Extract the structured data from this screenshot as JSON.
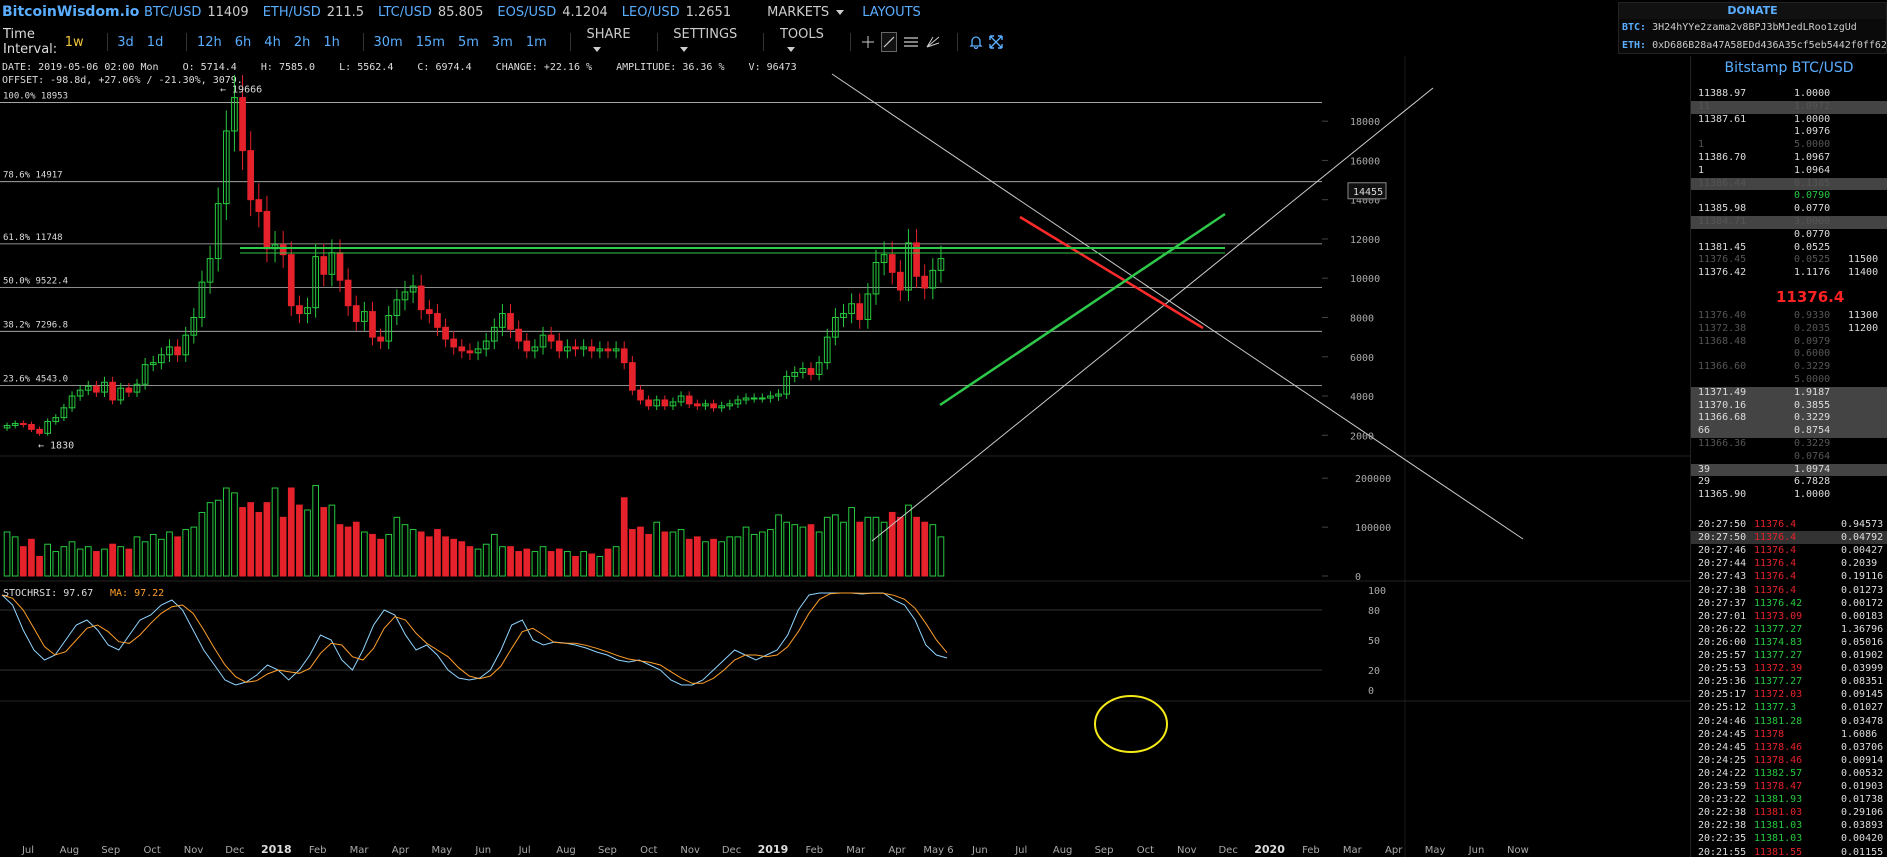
{
  "header": {
    "logo": "BitcoinWisdom.io",
    "tickers": [
      {
        "symbol": "BTC/USD",
        "value": "11409"
      },
      {
        "symbol": "ETH/USD",
        "value": "211.5"
      },
      {
        "symbol": "LTC/USD",
        "value": "85.805"
      },
      {
        "symbol": "EOS/USD",
        "value": "4.1204"
      },
      {
        "symbol": "LEO/USD",
        "value": "1.2651"
      }
    ],
    "markets_label": "MARKETS",
    "layouts_label": "LAYOUTS"
  },
  "toolbar": {
    "interval_label": "Time Interval:",
    "intervals": [
      "1w",
      "3d",
      "1d",
      "12h",
      "6h",
      "4h",
      "2h",
      "1h",
      "30m",
      "15m",
      "5m",
      "3m",
      "1m"
    ],
    "active_interval": "1w",
    "share_label": "SHARE",
    "settings_label": "SETTINGS",
    "tools_label": "TOOLS",
    "tool_icons": [
      "crosshair-icon",
      "trendline-icon",
      "horizontal-lines-icon",
      "draw-icon",
      "alert-bell-icon",
      "fullscreen-icon"
    ]
  },
  "donate": {
    "title": "DONATE",
    "btc_label": "BTC:",
    "btc_address": "3H24hYYe2zama2v8BPJ3bMJedLRoo1zgUd",
    "eth_label": "ETH:",
    "eth_address": "0xD686B28a47A58EDd436A35cf5eb5442f0ff62"
  },
  "chart_info": {
    "line1": "DATE: 2019-05-06 02:00 Mon    O: 5714.4    H: 7585.0    L: 5562.4    C: 6974.4    CHANGE: +22.16 %    AMPLITUDE: 36.36 %    V: 96473",
    "line2": "OFFSET: -98.8d, +27.06% / -21.30%, 3079."
  },
  "chart_data": {
    "type": "candlestick",
    "price_axis_ticks": [
      "18000",
      "16000",
      "14000",
      "12000",
      "10000",
      "8000",
      "6000",
      "4000",
      "2000"
    ],
    "price_axis_ticks_values": [
      18000,
      16000,
      14000,
      12000,
      10000,
      8000,
      6000,
      4000,
      2000
    ],
    "price_range": [
      1200,
      20300
    ],
    "volume_axis_ticks": [
      "200000",
      "100000",
      "0"
    ],
    "volume_axis_ticks_values": [
      200000,
      100000,
      0
    ],
    "volume_range": [
      0,
      225000
    ],
    "stoch_axis_ticks": [
      "100",
      "80",
      "50",
      "20",
      "0"
    ],
    "stoch_axis_ticks_values": [
      100,
      80,
      50,
      20,
      0
    ],
    "x_labels": [
      "Jul",
      "Aug",
      "Sep",
      "Oct",
      "Nov",
      "Dec",
      "2018",
      "Feb",
      "Mar",
      "Apr",
      "May",
      "Jun",
      "Jul",
      "Aug",
      "Sep",
      "Oct",
      "Nov",
      "Dec",
      "2019",
      "Feb",
      "Mar",
      "Apr",
      "May 6",
      "Jun",
      "Jul",
      "Aug",
      "Sep",
      "Oct",
      "Nov",
      "Dec",
      "2020",
      "Feb",
      "Mar",
      "Apr",
      "May",
      "Jun",
      "Now"
    ],
    "fib_levels": [
      {
        "label": "100.0% 18953",
        "value": 18953
      },
      {
        "label": "78.6% 14917",
        "value": 14917
      },
      {
        "label": "61.8% 11748",
        "value": 11748
      },
      {
        "label": "50.0% 9522.4",
        "value": 9522.4
      },
      {
        "label": "38.2% 7296.8",
        "value": 7296.8
      },
      {
        "label": "23.6% 4543.0",
        "value": 4543.0
      }
    ],
    "high_label": "← 19666",
    "high_value": 19666,
    "low_label": "← 1830",
    "low_value": 1830,
    "current_price_tag": "14455",
    "current_price_value": 14455,
    "stoch_label": "STOCHRSI: 97.67",
    "ma_label": "MA: 97.22",
    "closes": [
      2500,
      2600,
      2550,
      2300,
      2100,
      2700,
      2900,
      3400,
      4000,
      4300,
      4500,
      4200,
      4700,
      3800,
      4400,
      4200,
      4600,
      5600,
      5700,
      6100,
      6500,
      6100,
      7100,
      8000,
      9800,
      11000,
      13800,
      17500,
      19200,
      16500,
      14000,
      13400,
      11500,
      11700,
      11200,
      8600,
      8200,
      8500,
      11100,
      10200,
      11300,
      9900,
      8600,
      7800,
      8300,
      7000,
      6800,
      8100,
      8900,
      9300,
      9600,
      8400,
      8200,
      7500,
      6900,
      6500,
      6300,
      6200,
      6400,
      6800,
      7500,
      8200,
      7400,
      6800,
      6300,
      6500,
      7100,
      6800,
      6300,
      6500,
      6400,
      6500,
      6300,
      6400,
      6300,
      6400,
      5700,
      4300,
      3800,
      3500,
      3800,
      3500,
      3700,
      4000,
      3600,
      3500,
      3600,
      3400,
      3500,
      3600,
      3800,
      3900,
      3900,
      3900,
      4000,
      4100,
      5000,
      5200,
      5400,
      5100,
      5700,
      7000,
      8000,
      8200,
      8700,
      7900,
      9200,
      10800,
      11200,
      10300,
      9400,
      11800,
      10100,
      9500,
      10400,
      11000
    ],
    "volumes": [
      90000,
      80000,
      60000,
      75000,
      40000,
      65000,
      50000,
      60000,
      70000,
      55000,
      60000,
      50000,
      55000,
      65000,
      60000,
      55000,
      80000,
      70000,
      85000,
      75000,
      90000,
      80000,
      95000,
      100000,
      130000,
      150000,
      155000,
      180000,
      170000,
      140000,
      150000,
      130000,
      150000,
      180000,
      120000,
      180000,
      145000,
      135000,
      185000,
      140000,
      145000,
      105000,
      100000,
      110000,
      90000,
      85000,
      75000,
      85000,
      120000,
      105000,
      95000,
      90000,
      80000,
      95000,
      80000,
      75000,
      70000,
      60000,
      55000,
      65000,
      85000,
      60000,
      60000,
      50000,
      55000,
      50000,
      60000,
      50000,
      55000,
      50000,
      40000,
      50000,
      45000,
      40000,
      55000,
      60000,
      160000,
      95000,
      100000,
      85000,
      110000,
      90000,
      90000,
      95000,
      75000,
      80000,
      70000,
      75000,
      70000,
      80000,
      80000,
      100000,
      85000,
      90000,
      95000,
      125000,
      110000,
      105000,
      100000,
      105000,
      90000,
      120000,
      125000,
      110000,
      140000,
      110000,
      120000,
      120000,
      110000,
      130000,
      120000,
      145000,
      120000,
      110000,
      105000,
      80000
    ],
    "stoch_k": [
      95,
      85,
      60,
      40,
      30,
      35,
      50,
      65,
      70,
      60,
      45,
      40,
      55,
      70,
      75,
      85,
      90,
      80,
      60,
      40,
      25,
      10,
      5,
      8,
      15,
      25,
      20,
      10,
      20,
      35,
      55,
      50,
      30,
      20,
      40,
      65,
      80,
      75,
      55,
      40,
      45,
      35,
      20,
      12,
      10,
      12,
      20,
      40,
      65,
      70,
      50,
      45,
      48,
      47,
      45,
      42,
      38,
      35,
      30,
      28,
      30,
      25,
      20,
      10,
      5,
      5,
      10,
      20,
      30,
      40,
      35,
      30,
      35,
      40,
      55,
      80,
      95,
      97,
      97,
      97,
      97,
      96,
      97,
      97,
      90,
      85,
      70,
      45,
      35,
      32
    ]
  },
  "orderbook": {
    "title": "Bitstamp BTC/USD",
    "asks": [
      {
        "price": "11388.97",
        "amount": "1.0000"
      },
      {
        "price": "11",
        "amount": "1.0972"
      },
      {
        "price": "11387.61",
        "amount": "1.0000"
      },
      {
        "price": "",
        "amount": "1.0976"
      },
      {
        "price": "1",
        "amount": "5.0000"
      },
      {
        "price": "11386.70",
        "amount": "1.0967"
      },
      {
        "price": "1",
        "amount": "1.0964"
      },
      {
        "price": "11386.44",
        "amount": "0.1385"
      },
      {
        "price": "",
        "amount": "0.0790"
      },
      {
        "price": "11385.98",
        "amount": "0.0770"
      },
      {
        "price": "11384.71",
        "amount": "3.0000"
      },
      {
        "price": "",
        "amount": "0.0770"
      },
      {
        "price": "11381.45",
        "amount": "0.0525"
      },
      {
        "price": "11376.45",
        "amount": "0.0525"
      },
      {
        "price": "11376.42",
        "amount": "1.1176"
      }
    ],
    "ask_totals": [
      "11500",
      "11400"
    ],
    "last_price": "11376.4",
    "bids": [
      {
        "price": "11376.40",
        "amount": "0.9330"
      },
      {
        "price": "11372.38",
        "amount": "0.2035"
      },
      {
        "price": "11368.48",
        "amount": "0.0979"
      },
      {
        "price": "",
        "amount": "0.6000"
      },
      {
        "price": "11366.60",
        "amount": "0.3229"
      },
      {
        "price": "",
        "amount": "5.0000"
      },
      {
        "price": "11371.49",
        "amount": "1.9187"
      },
      {
        "price": "11370.16",
        "amount": "0.3855"
      },
      {
        "price": "11366.68",
        "amount": "0.3229"
      },
      {
        "price": "66",
        "amount": "0.8754"
      },
      {
        "price": "11366.36",
        "amount": "0.3229"
      },
      {
        "price": "",
        "amount": "0.0764"
      },
      {
        "price": "39",
        "amount": "1.0974"
      },
      {
        "price": "29",
        "amount": "6.7828"
      },
      {
        "price": "11365.90",
        "amount": "1.0000"
      }
    ],
    "bid_totals": [
      "11300",
      "11200"
    ]
  },
  "trades": [
    {
      "time": "20:27:50",
      "price": "11376.4",
      "amount": "0.94573",
      "side": "sell"
    },
    {
      "time": "20:27:50",
      "price": "11376.4",
      "amount": "0.04792",
      "side": "sell"
    },
    {
      "time": "20:27:46",
      "price": "11376.4",
      "amount": "0.00427",
      "side": "sell"
    },
    {
      "time": "20:27:44",
      "price": "11376.4",
      "amount": "0.2039",
      "side": "sell"
    },
    {
      "time": "20:27:43",
      "price": "11376.4",
      "amount": "0.19116",
      "side": "sell"
    },
    {
      "time": "20:27:38",
      "price": "11376.4",
      "amount": "0.01273",
      "side": "sell"
    },
    {
      "time": "20:27:37",
      "price": "11376.42",
      "amount": "0.00172",
      "side": "buy"
    },
    {
      "time": "20:27:01",
      "price": "11373.09",
      "amount": "0.00183",
      "side": "sell"
    },
    {
      "time": "20:26:22",
      "price": "11377.27",
      "amount": "1.36796",
      "side": "buy"
    },
    {
      "time": "20:26:00",
      "price": "11374.83",
      "amount": "0.05016",
      "side": "buy"
    },
    {
      "time": "20:25:57",
      "price": "11377.27",
      "amount": "0.01902",
      "side": "buy"
    },
    {
      "time": "20:25:53",
      "price": "11372.39",
      "amount": "0.03999",
      "side": "sell"
    },
    {
      "time": "20:25:36",
      "price": "11377.27",
      "amount": "0.08351",
      "side": "buy"
    },
    {
      "time": "20:25:17",
      "price": "11372.03",
      "amount": "0.09145",
      "side": "sell"
    },
    {
      "time": "20:25:12",
      "price": "11377.3",
      "amount": "0.01027",
      "side": "buy"
    },
    {
      "time": "20:24:46",
      "price": "11381.28",
      "amount": "0.03478",
      "side": "buy"
    },
    {
      "time": "20:24:45",
      "price": "11378",
      "amount": "1.6086",
      "side": "sell"
    },
    {
      "time": "20:24:45",
      "price": "11378.46",
      "amount": "0.03706",
      "side": "sell"
    },
    {
      "time": "20:24:25",
      "price": "11378.46",
      "amount": "0.00914",
      "side": "sell"
    },
    {
      "time": "20:24:22",
      "price": "11382.57",
      "amount": "0.00532",
      "side": "buy"
    },
    {
      "time": "20:23:59",
      "price": "11378.47",
      "amount": "0.01903",
      "side": "sell"
    },
    {
      "time": "20:23:22",
      "price": "11381.93",
      "amount": "0.01738",
      "side": "buy"
    },
    {
      "time": "20:22:38",
      "price": "11381.03",
      "amount": "0.29106",
      "side": "sell"
    },
    {
      "time": "20:22:38",
      "price": "11381.03",
      "amount": "0.03893",
      "side": "buy"
    },
    {
      "time": "20:22:35",
      "price": "11381.03",
      "amount": "0.00420",
      "side": "buy"
    },
    {
      "time": "20:21:55",
      "price": "11381.55",
      "amount": "0.01155",
      "side": "sell"
    }
  ],
  "colors": {
    "up": "#27c93f",
    "down": "#e5222b",
    "accent": "#5aaeff",
    "active": "#f0c43c",
    "stoch_k": "#8fd4ff",
    "stoch_d": "#ff9f2a",
    "trend_red": "#ff2a2a",
    "trend_green": "#2ec84a",
    "circle": "#f5ea18"
  }
}
